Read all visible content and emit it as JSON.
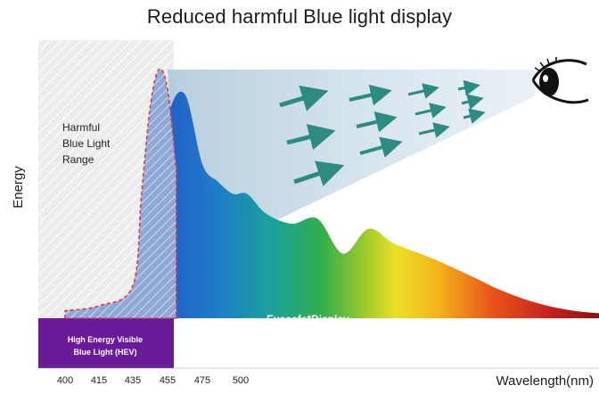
{
  "chart_data": {
    "type": "area",
    "title": "Reduced harmful Blue light display",
    "xlabel": "Wavelength(nm)",
    "ylabel": "Energy",
    "x_ticks": [
      "400",
      "415",
      "435",
      "455",
      "475",
      "500"
    ],
    "annotations": {
      "harmful_range": [
        "Harmful",
        "Blue Light",
        "Range"
      ],
      "hev_band": [
        "High Energy Visible",
        "Blue Light (HEV)"
      ],
      "display_curve": "Eyesafe*Display"
    },
    "series": [
      {
        "name": "Eyesafe*Display",
        "x": [
          400,
          415,
          435,
          445,
          455,
          465,
          475,
          485,
          495,
          505,
          520,
          540,
          560,
          580,
          600,
          620,
          650,
          680,
          700,
          720,
          740,
          760,
          780
        ],
        "y": [
          0.03,
          0.04,
          0.08,
          0.32,
          0.8,
          0.9,
          0.62,
          0.55,
          0.5,
          0.5,
          0.42,
          0.38,
          0.4,
          0.26,
          0.36,
          0.3,
          0.24,
          0.17,
          0.12,
          0.08,
          0.05,
          0.03,
          0.02
        ]
      },
      {
        "name": "",
        "x": [
          400,
          415,
          435,
          440,
          445,
          450,
          455,
          460
        ],
        "y": [
          0.03,
          0.05,
          0.13,
          0.5,
          0.85,
          1.0,
          0.92,
          0.6
        ]
      }
    ],
    "grid": false,
    "colors": {
      "hev_band": "#6a1b9a",
      "arrows": "#2e8b84",
      "hatch": "#e53935"
    }
  }
}
